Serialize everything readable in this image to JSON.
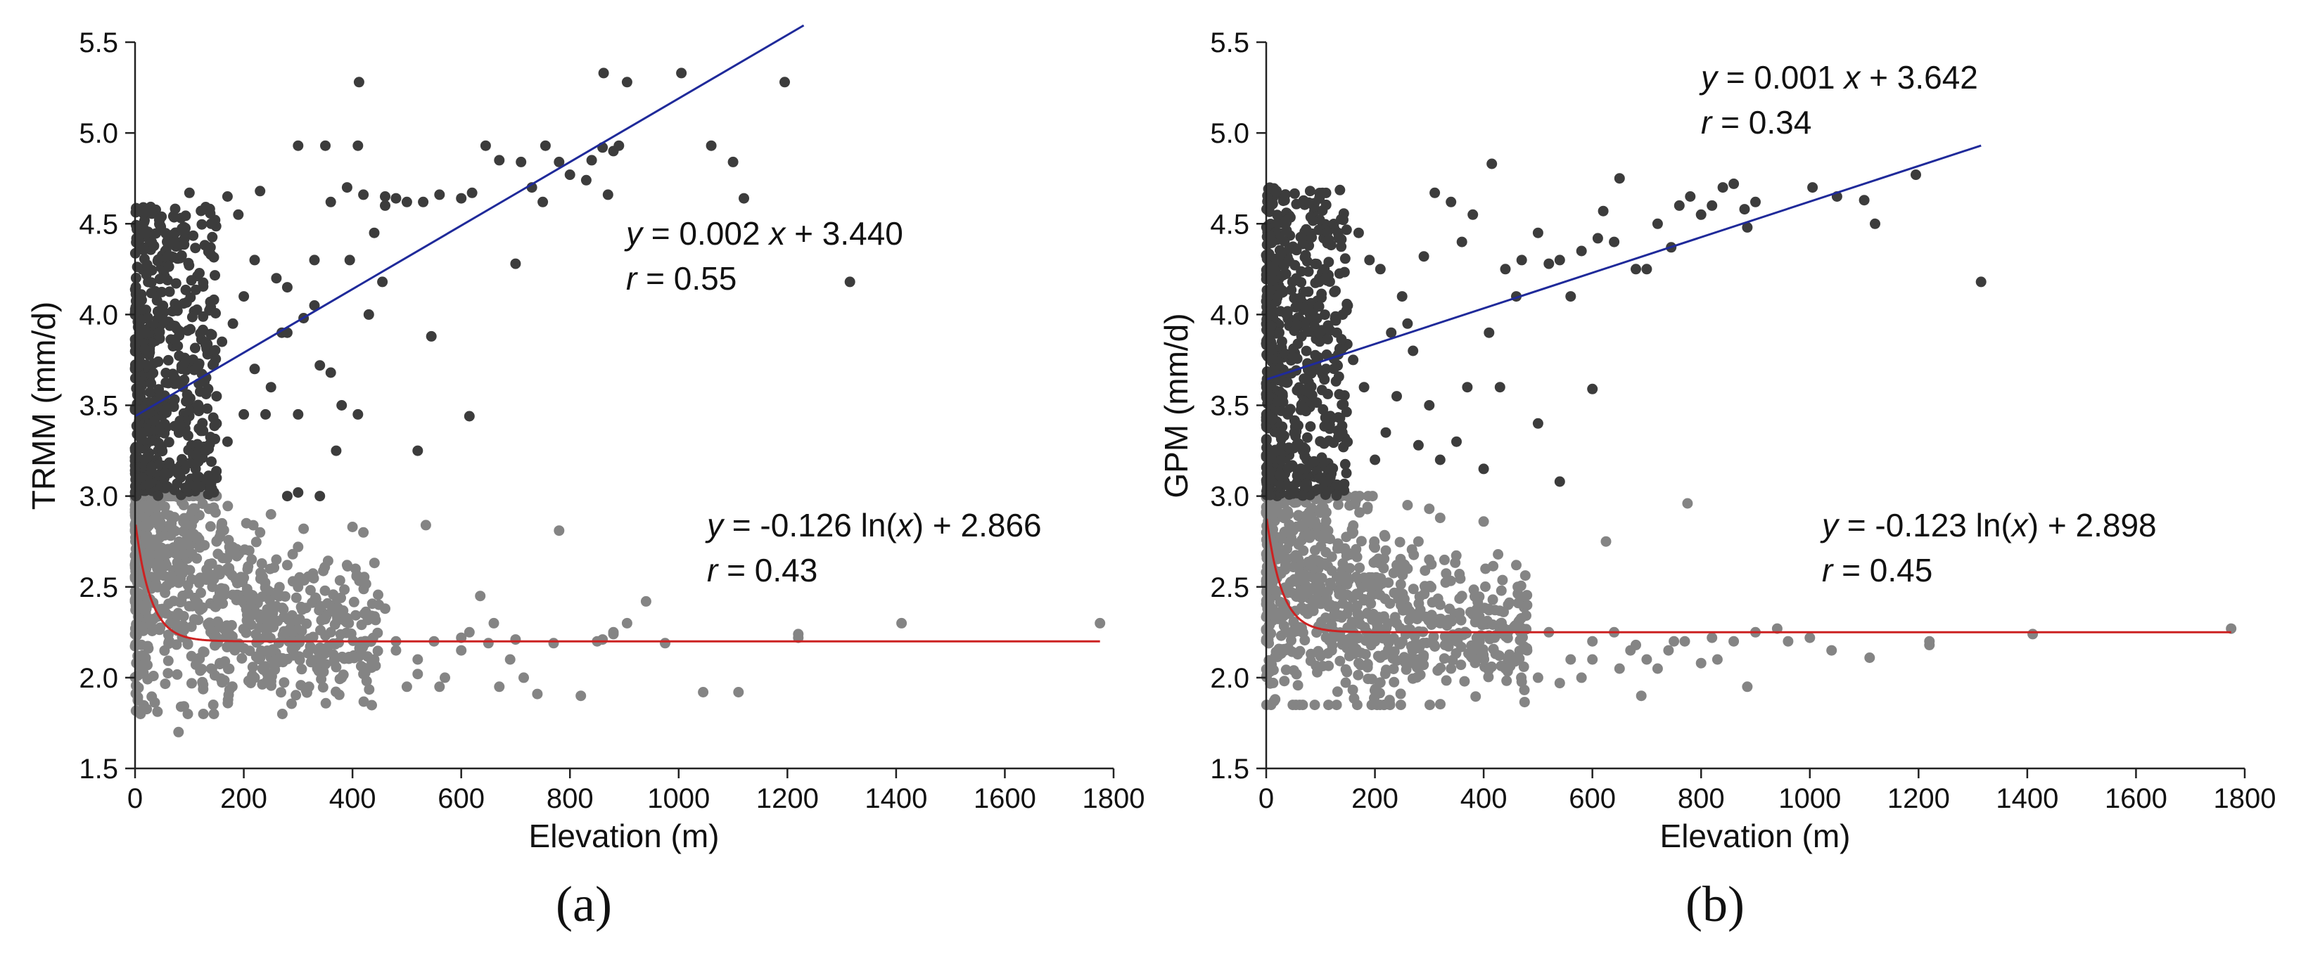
{
  "chart_data": [
    {
      "type": "scatter",
      "panel_label": "(a)",
      "xlabel": "Elevation (m)",
      "ylabel": "TRMM (mm/d)",
      "xlim": [
        0,
        1800
      ],
      "ylim": [
        1.5,
        5.5
      ],
      "xticks": [
        "0",
        "200",
        "400",
        "600",
        "800",
        "1000",
        "1200",
        "1400",
        "1600",
        "1800"
      ],
      "yticks": [
        "1.5",
        "2.0",
        "2.5",
        "3.0",
        "3.5",
        "4.0",
        "4.5",
        "5.0",
        "5.5"
      ],
      "dark_color": "#3c3c3c",
      "light_color": "#848484",
      "upper_fit": {
        "type": "linear",
        "slope": 0.00175,
        "intercept": 3.44,
        "x_range": [
          0,
          1230
        ],
        "color": "#1f2a9a",
        "equation": [
          "y",
          " = 0.002 ",
          "x",
          " + 3.440"
        ],
        "r": [
          "r",
          " = 0.55"
        ]
      },
      "lower_fit": {
        "type": "log",
        "a": -0.126,
        "b": 2.866,
        "floor": 2.2,
        "x_range": [
          0,
          1775
        ],
        "color": "#cc2222",
        "equation": [
          "y",
          " = -0.126 ln(",
          "x",
          ") + 2.866"
        ],
        "r": [
          "r",
          " = 0.43"
        ]
      },
      "upper_points": [
        [
          412,
          5.28
        ],
        [
          862,
          5.33
        ],
        [
          1005,
          5.33
        ],
        [
          1195,
          5.28
        ],
        [
          905,
          5.28
        ],
        [
          645,
          4.93
        ],
        [
          890,
          4.93
        ],
        [
          1060,
          4.93
        ],
        [
          1100,
          4.84
        ],
        [
          1120,
          4.64
        ],
        [
          1315,
          4.18
        ],
        [
          780,
          4.84
        ],
        [
          710,
          4.84
        ],
        [
          755,
          4.93
        ],
        [
          600,
          4.64
        ],
        [
          560,
          4.66
        ],
        [
          530,
          4.62
        ],
        [
          455,
          4.18
        ],
        [
          395,
          4.3
        ],
        [
          280,
          3.9
        ],
        [
          240,
          3.45
        ],
        [
          300,
          3.45
        ],
        [
          370,
          3.25
        ],
        [
          410,
          3.45
        ],
        [
          430,
          4.0
        ],
        [
          520,
          3.25
        ],
        [
          545,
          3.88
        ],
        [
          615,
          3.44
        ],
        [
          700,
          4.28
        ],
        [
          830,
          4.74
        ],
        [
          870,
          4.66
        ],
        [
          300,
          4.93
        ],
        [
          350,
          4.93
        ],
        [
          410,
          4.93
        ],
        [
          460,
          4.65
        ],
        [
          260,
          4.2
        ],
        [
          220,
          4.3
        ],
        [
          170,
          4.65
        ],
        [
          140,
          4.5
        ],
        [
          100,
          4.67
        ],
        [
          190,
          4.55
        ],
        [
          230,
          4.68
        ],
        [
          330,
          4.3
        ],
        [
          360,
          4.62
        ],
        [
          390,
          4.7
        ],
        [
          420,
          4.66
        ],
        [
          460,
          4.6
        ],
        [
          480,
          4.64
        ],
        [
          500,
          4.62
        ],
        [
          330,
          4.05
        ],
        [
          280,
          4.15
        ],
        [
          200,
          4.1
        ],
        [
          180,
          3.95
        ],
        [
          160,
          3.85
        ],
        [
          150,
          3.55
        ],
        [
          130,
          3.25
        ],
        [
          120,
          3.05
        ],
        [
          150,
          3.1
        ],
        [
          170,
          3.3
        ],
        [
          200,
          3.45
        ],
        [
          220,
          3.7
        ],
        [
          250,
          3.6
        ],
        [
          270,
          3.9
        ],
        [
          310,
          3.98
        ],
        [
          340,
          3.72
        ],
        [
          360,
          3.68
        ],
        [
          380,
          3.5
        ],
        [
          280,
          3.0
        ],
        [
          300,
          3.02
        ],
        [
          340,
          3.0
        ],
        [
          440,
          4.45
        ],
        [
          620,
          4.67
        ],
        [
          670,
          4.85
        ],
        [
          730,
          4.7
        ],
        [
          800,
          4.77
        ],
        [
          840,
          4.85
        ],
        [
          860,
          4.92
        ],
        [
          880,
          4.9
        ],
        [
          750,
          4.62
        ]
      ],
      "lower_points": [
        [
          1775,
          2.3
        ],
        [
          1410,
          2.3
        ],
        [
          1220,
          2.24
        ],
        [
          1110,
          1.92
        ],
        [
          1045,
          1.92
        ],
        [
          975,
          2.19
        ],
        [
          940,
          2.42
        ],
        [
          905,
          2.3
        ],
        [
          880,
          2.24
        ],
        [
          850,
          2.2
        ],
        [
          820,
          1.9
        ],
        [
          780,
          2.81
        ],
        [
          770,
          2.19
        ],
        [
          740,
          1.91
        ],
        [
          715,
          2.0
        ],
        [
          690,
          2.1
        ],
        [
          670,
          1.95
        ],
        [
          650,
          2.19
        ],
        [
          635,
          2.45
        ],
        [
          615,
          2.25
        ],
        [
          600,
          2.15
        ],
        [
          570,
          2.0
        ],
        [
          550,
          2.2
        ],
        [
          535,
          2.84
        ],
        [
          520,
          2.1
        ],
        [
          500,
          1.95
        ],
        [
          480,
          2.2
        ],
        [
          460,
          2.38
        ],
        [
          440,
          2.1
        ],
        [
          420,
          2.8
        ],
        [
          400,
          2.83
        ],
        [
          380,
          2.0
        ],
        [
          360,
          2.25
        ],
        [
          340,
          2.1
        ],
        [
          320,
          1.95
        ],
        [
          300,
          2.5
        ],
        [
          290,
          2.25
        ],
        [
          280,
          2.62
        ],
        [
          260,
          2.1
        ],
        [
          240,
          2.35
        ],
        [
          220,
          2.0
        ],
        [
          200,
          2.55
        ],
        [
          180,
          2.2
        ],
        [
          160,
          2.85
        ],
        [
          140,
          2.05
        ],
        [
          120,
          2.55
        ],
        [
          80,
          1.7
        ],
        [
          300,
          2.72
        ],
        [
          310,
          2.82
        ],
        [
          290,
          2.68
        ],
        [
          250,
          2.9
        ],
        [
          210,
          2.7
        ],
        [
          170,
          2.6
        ],
        [
          150,
          2.75
        ],
        [
          1220,
          2.22
        ],
        [
          880,
          2.25
        ],
        [
          860,
          2.21
        ],
        [
          700,
          2.21
        ],
        [
          660,
          2.3
        ],
        [
          600,
          2.22
        ],
        [
          560,
          1.95
        ],
        [
          520,
          2.02
        ],
        [
          480,
          2.15
        ],
        [
          420,
          2.02
        ],
        [
          260,
          2.65
        ],
        [
          230,
          2.8
        ]
      ],
      "upper_cluster": {
        "x_range": [
          0,
          150
        ],
        "y_range": [
          3.0,
          4.6
        ],
        "count": 520,
        "seed": 11
      },
      "lower_cluster": {
        "x_range": [
          0,
          450
        ],
        "y_range": [
          1.8,
          3.0
        ],
        "count": 900,
        "seed": 23
      }
    },
    {
      "type": "scatter",
      "panel_label": "(b)",
      "xlabel": "Elevation (m)",
      "ylabel": "GPM (mm/d)",
      "xlim": [
        0,
        1800
      ],
      "ylim": [
        1.5,
        5.5
      ],
      "xticks": [
        "0",
        "200",
        "400",
        "600",
        "800",
        "1000",
        "1200",
        "1400",
        "1600",
        "1800"
      ],
      "yticks": [
        "1.5",
        "2.0",
        "2.5",
        "3.0",
        "3.5",
        "4.0",
        "4.5",
        "5.0",
        "5.5"
      ],
      "dark_color": "#3c3c3c",
      "light_color": "#848484",
      "upper_fit": {
        "type": "linear",
        "slope": 0.00098,
        "intercept": 3.642,
        "x_range": [
          0,
          1315
        ],
        "color": "#1f2a9a",
        "equation": [
          "y",
          " = 0.001 ",
          "x",
          " + 3.642"
        ],
        "r": [
          "r",
          " = 0.34"
        ]
      },
      "lower_fit": {
        "type": "log",
        "a": -0.123,
        "b": 2.898,
        "floor": 2.25,
        "x_range": [
          0,
          1775
        ],
        "color": "#cc2222",
        "equation": [
          "y",
          " = -0.123 ln(",
          "x",
          ") + 2.898"
        ],
        "r": [
          "r",
          " = 0.45"
        ]
      },
      "upper_points": [
        [
          1315,
          4.18
        ],
        [
          1195,
          4.77
        ],
        [
          1120,
          4.5
        ],
        [
          1100,
          4.63
        ],
        [
          1050,
          4.65
        ],
        [
          1005,
          4.7
        ],
        [
          900,
          4.62
        ],
        [
          885,
          4.48
        ],
        [
          860,
          4.72
        ],
        [
          820,
          4.6
        ],
        [
          780,
          4.65
        ],
        [
          745,
          4.37
        ],
        [
          700,
          4.25
        ],
        [
          650,
          4.75
        ],
        [
          620,
          4.57
        ],
        [
          600,
          3.59
        ],
        [
          560,
          4.1
        ],
        [
          540,
          3.08
        ],
        [
          500,
          3.4
        ],
        [
          470,
          4.3
        ],
        [
          440,
          4.25
        ],
        [
          415,
          4.83
        ],
        [
          400,
          3.15
        ],
        [
          410,
          3.9
        ],
        [
          430,
          3.6
        ],
        [
          380,
          4.55
        ],
        [
          360,
          4.4
        ],
        [
          340,
          4.62
        ],
        [
          310,
          4.67
        ],
        [
          290,
          4.32
        ],
        [
          270,
          3.8
        ],
        [
          250,
          4.1
        ],
        [
          230,
          3.9
        ],
        [
          210,
          4.25
        ],
        [
          190,
          4.3
        ],
        [
          170,
          4.45
        ],
        [
          150,
          4.05
        ],
        [
          130,
          3.9
        ],
        [
          110,
          3.7
        ],
        [
          300,
          3.5
        ],
        [
          280,
          3.28
        ],
        [
          320,
          3.2
        ],
        [
          350,
          3.3
        ],
        [
          370,
          3.6
        ],
        [
          260,
          3.95
        ],
        [
          240,
          3.55
        ],
        [
          220,
          3.35
        ],
        [
          200,
          3.2
        ],
        [
          180,
          3.6
        ],
        [
          160,
          3.75
        ],
        [
          140,
          3.35
        ],
        [
          120,
          3.15
        ],
        [
          100,
          3.1
        ],
        [
          640,
          4.4
        ],
        [
          680,
          4.25
        ],
        [
          720,
          4.5
        ],
        [
          760,
          4.6
        ],
        [
          800,
          4.55
        ],
        [
          840,
          4.7
        ],
        [
          880,
          4.58
        ],
        [
          540,
          4.3
        ],
        [
          500,
          4.45
        ],
        [
          460,
          4.1
        ],
        [
          520,
          4.28
        ],
        [
          580,
          4.35
        ],
        [
          610,
          4.42
        ]
      ],
      "lower_points": [
        [
          1775,
          2.27
        ],
        [
          1410,
          2.24
        ],
        [
          1220,
          2.18
        ],
        [
          1110,
          2.11
        ],
        [
          1040,
          2.15
        ],
        [
          1000,
          2.22
        ],
        [
          960,
          2.2
        ],
        [
          900,
          2.25
        ],
        [
          885,
          1.95
        ],
        [
          860,
          2.2
        ],
        [
          830,
          2.1
        ],
        [
          800,
          2.08
        ],
        [
          775,
          2.96
        ],
        [
          750,
          2.2
        ],
        [
          720,
          2.05
        ],
        [
          690,
          1.9
        ],
        [
          670,
          2.15
        ],
        [
          640,
          2.25
        ],
        [
          625,
          2.75
        ],
        [
          600,
          2.2
        ],
        [
          580,
          2.0
        ],
        [
          560,
          2.1
        ],
        [
          540,
          1.97
        ],
        [
          520,
          2.25
        ],
        [
          500,
          2.0
        ],
        [
          480,
          2.15
        ],
        [
          460,
          2.62
        ],
        [
          440,
          2.05
        ],
        [
          420,
          2.22
        ],
        [
          400,
          2.86
        ],
        [
          380,
          2.15
        ],
        [
          360,
          2.45
        ],
        [
          340,
          2.05
        ],
        [
          320,
          2.3
        ],
        [
          300,
          2.93
        ],
        [
          280,
          2.1
        ],
        [
          260,
          2.6
        ],
        [
          240,
          2.3
        ],
        [
          220,
          2.7
        ],
        [
          200,
          2.2
        ],
        [
          180,
          2.55
        ],
        [
          160,
          2.8
        ],
        [
          300,
          2.65
        ],
        [
          320,
          2.88
        ],
        [
          280,
          2.75
        ],
        [
          260,
          2.95
        ],
        [
          240,
          2.62
        ],
        [
          600,
          2.1
        ],
        [
          650,
          2.05
        ],
        [
          680,
          2.18
        ],
        [
          700,
          2.1
        ],
        [
          740,
          2.15
        ],
        [
          770,
          2.2
        ],
        [
          820,
          2.22
        ],
        [
          940,
          2.27
        ],
        [
          1220,
          2.2
        ]
      ],
      "upper_cluster": {
        "x_range": [
          0,
          150
        ],
        "y_range": [
          3.0,
          4.7
        ],
        "count": 600,
        "seed": 37
      },
      "lower_cluster": {
        "x_range": [
          0,
          480
        ],
        "y_range": [
          1.85,
          3.0
        ],
        "count": 950,
        "seed": 51
      }
    }
  ]
}
